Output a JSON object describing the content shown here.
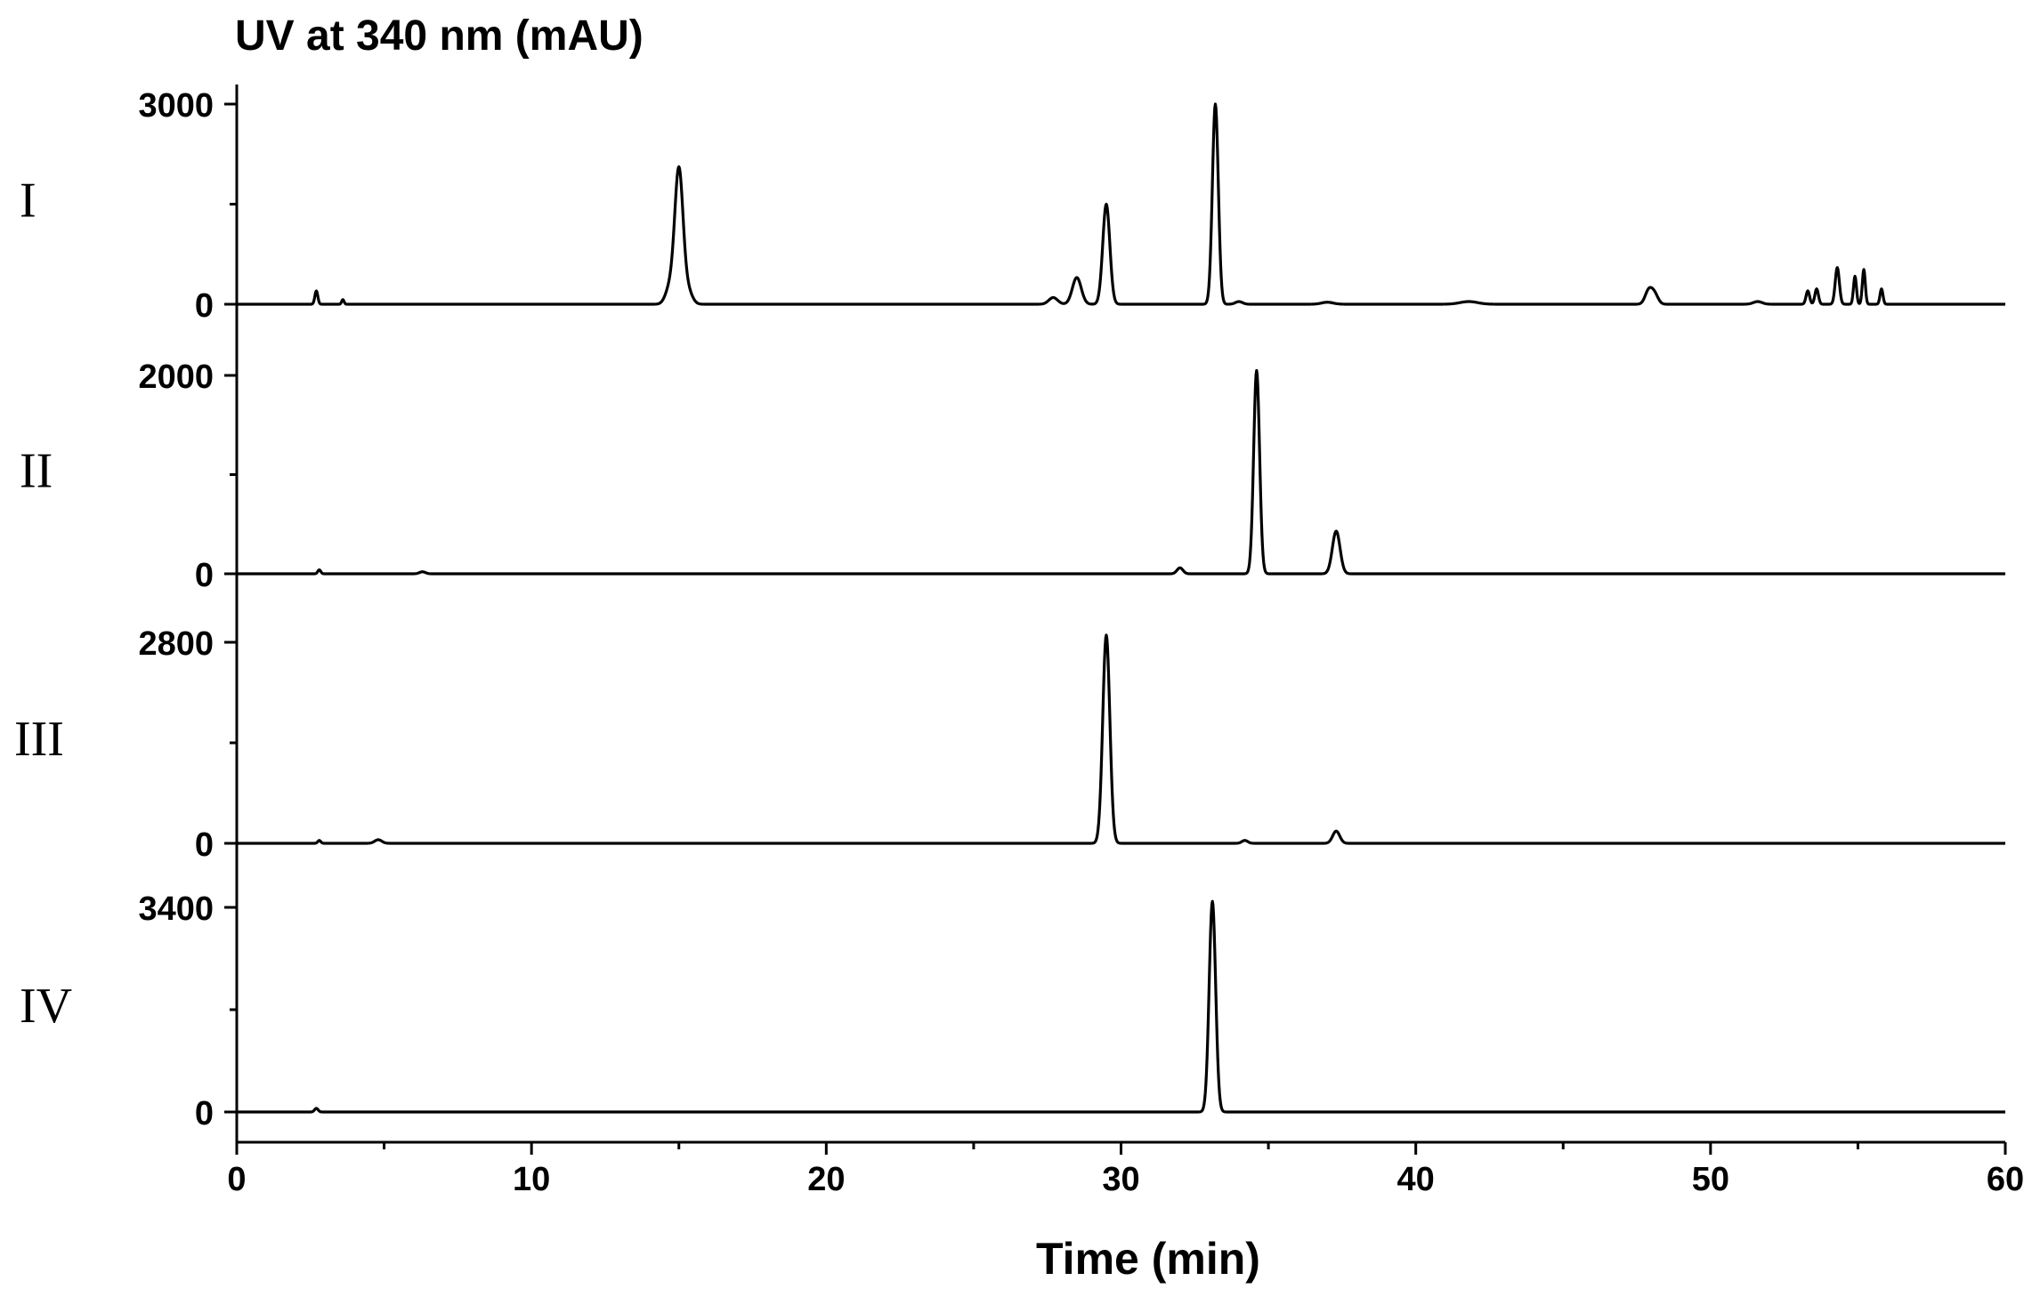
{
  "chart_data": {
    "type": "line",
    "title": "UV at 340 nm (mAU)",
    "xlabel": "Time (min)",
    "xlim": [
      0,
      60
    ],
    "x_ticks": [
      "0",
      "10",
      "20",
      "30",
      "40",
      "50",
      "60"
    ],
    "axis_color": "#000000",
    "line_color": "#000000",
    "grid": false,
    "legend": "none",
    "panels": [
      {
        "name": "I",
        "ylim": [
          0,
          3000
        ],
        "y_ticks": [
          "0",
          "3000"
        ],
        "peaks": [
          [
            2.7,
            200,
            0.05
          ],
          [
            3.6,
            70,
            0.04
          ],
          [
            14.7,
            250,
            0.15
          ],
          [
            15.0,
            2000,
            0.14
          ],
          [
            15.3,
            200,
            0.15
          ],
          [
            27.7,
            100,
            0.15
          ],
          [
            28.5,
            400,
            0.15
          ],
          [
            29.5,
            1500,
            0.12
          ],
          [
            33.2,
            3000,
            0.1
          ],
          [
            34.0,
            40,
            0.12
          ],
          [
            37.0,
            30,
            0.2
          ],
          [
            41.8,
            40,
            0.3
          ],
          [
            47.9,
            200,
            0.12
          ],
          [
            48.1,
            150,
            0.12
          ],
          [
            51.6,
            40,
            0.15
          ],
          [
            53.3,
            200,
            0.06
          ],
          [
            53.6,
            230,
            0.06
          ],
          [
            54.3,
            550,
            0.07
          ],
          [
            54.9,
            420,
            0.05
          ],
          [
            55.2,
            520,
            0.05
          ],
          [
            55.8,
            230,
            0.05
          ]
        ]
      },
      {
        "name": "II",
        "ylim": [
          0,
          2000
        ],
        "y_ticks": [
          "0",
          "2000"
        ],
        "peaks": [
          [
            2.8,
            40,
            0.05
          ],
          [
            6.3,
            20,
            0.1
          ],
          [
            32.0,
            60,
            0.1
          ],
          [
            34.6,
            2050,
            0.1
          ],
          [
            37.3,
            430,
            0.13
          ]
        ]
      },
      {
        "name": "III",
        "ylim": [
          0,
          2800
        ],
        "y_ticks": [
          "0",
          "2800"
        ],
        "peaks": [
          [
            2.8,
            40,
            0.05
          ],
          [
            4.8,
            50,
            0.12
          ],
          [
            29.5,
            2900,
            0.12
          ],
          [
            34.2,
            40,
            0.1
          ],
          [
            37.3,
            170,
            0.12
          ]
        ]
      },
      {
        "name": "IV",
        "ylim": [
          0,
          3400
        ],
        "y_ticks": [
          "0",
          "3400"
        ],
        "peaks": [
          [
            2.7,
            60,
            0.06
          ],
          [
            33.1,
            3500,
            0.11
          ]
        ]
      }
    ]
  }
}
